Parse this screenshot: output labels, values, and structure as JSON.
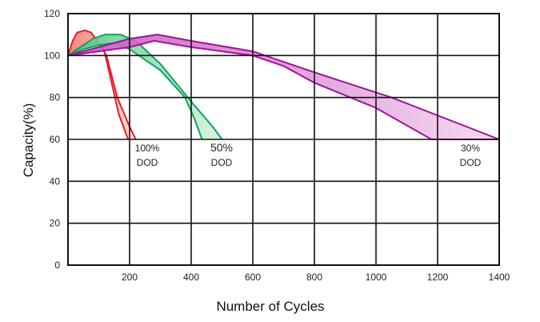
{
  "chart_data": {
    "type": "area",
    "title": "",
    "xlabel": "Number of Cycles",
    "ylabel": "Capacity(%)",
    "xlim": [
      0,
      1400
    ],
    "ylim": [
      0,
      120
    ],
    "x_ticks": [
      200,
      400,
      600,
      800,
      1000,
      1200,
      1400
    ],
    "y_ticks": [
      0,
      20,
      40,
      60,
      80,
      100,
      120
    ],
    "grid": true,
    "series": [
      {
        "name": "100% DOD",
        "label_lines": [
          "100%",
          "DOD"
        ],
        "color": "#e0202a",
        "fill_light": "#fde3dc",
        "fill_dark": "#f07a6a",
        "upper": [
          [
            0,
            100
          ],
          [
            15,
            107
          ],
          [
            30,
            111
          ],
          [
            55,
            112
          ],
          [
            75,
            111
          ],
          [
            95,
            107
          ],
          [
            125,
            100
          ],
          [
            160,
            80
          ],
          [
            200,
            66
          ],
          [
            220,
            60
          ]
        ],
        "lower": [
          [
            0,
            100
          ],
          [
            30,
            103
          ],
          [
            60,
            105
          ],
          [
            90,
            106
          ],
          [
            115,
            104
          ],
          [
            140,
            88
          ],
          [
            165,
            72
          ],
          [
            195,
            60
          ]
        ]
      },
      {
        "name": "50% DOD",
        "label_lines": [
          "50%",
          "DOD"
        ],
        "color": "#10a35a",
        "fill_light": "#d8f2e2",
        "fill_dark": "#4cc47e",
        "upper": [
          [
            0,
            100
          ],
          [
            40,
            104
          ],
          [
            80,
            108
          ],
          [
            120,
            110
          ],
          [
            170,
            110
          ],
          [
            220,
            107
          ],
          [
            300,
            96
          ],
          [
            400,
            78
          ],
          [
            470,
            66
          ],
          [
            500,
            60
          ]
        ],
        "lower": [
          [
            0,
            100
          ],
          [
            50,
            103
          ],
          [
            100,
            105
          ],
          [
            150,
            106
          ],
          [
            200,
            103
          ],
          [
            300,
            93
          ],
          [
            380,
            80
          ],
          [
            410,
            70
          ],
          [
            435,
            60
          ]
        ]
      },
      {
        "name": "30% DOD",
        "label_lines": [
          "30%",
          "DOD"
        ],
        "color": "#a0139a",
        "fill_light": "#f3d6ef",
        "fill_dark": "#c457bc",
        "upper": [
          [
            0,
            100
          ],
          [
            100,
            104
          ],
          [
            200,
            108
          ],
          [
            290,
            110
          ],
          [
            400,
            107
          ],
          [
            600,
            102
          ],
          [
            800,
            92
          ],
          [
            1050,
            80
          ],
          [
            1400,
            60
          ]
        ],
        "lower": [
          [
            0,
            100
          ],
          [
            100,
            102
          ],
          [
            200,
            104
          ],
          [
            280,
            107
          ],
          [
            400,
            104
          ],
          [
            600,
            100
          ],
          [
            700,
            95
          ],
          [
            800,
            87
          ],
          [
            1000,
            75
          ],
          [
            1180,
            60
          ],
          [
            1400,
            60
          ]
        ]
      }
    ]
  }
}
